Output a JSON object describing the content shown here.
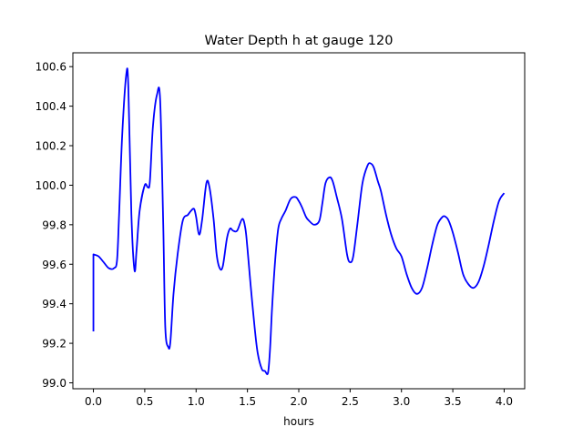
{
  "chart_data": {
    "type": "line",
    "title": "Water Depth h at gauge 120",
    "xlabel": "hours",
    "ylabel": "",
    "xlim": [
      -0.2,
      4.2
    ],
    "ylim": [
      98.97,
      100.67
    ],
    "xticks": [
      0.0,
      0.5,
      1.0,
      1.5,
      2.0,
      2.5,
      3.0,
      3.5,
      4.0
    ],
    "xtick_labels": [
      "0.0",
      "0.5",
      "1.0",
      "1.5",
      "2.0",
      "2.5",
      "3.0",
      "3.5",
      "4.0"
    ],
    "yticks": [
      99.0,
      99.2,
      99.4,
      99.6,
      99.8,
      100.0,
      100.2,
      100.4,
      100.6
    ],
    "ytick_labels": [
      "99.0",
      "99.2",
      "99.4",
      "99.6",
      "99.8",
      "100.0",
      "100.2",
      "100.4",
      "100.6"
    ],
    "grid": false,
    "series": [
      {
        "color": "#0000ff",
        "x": [
          0.0,
          0.0,
          0.05,
          0.1,
          0.15,
          0.2,
          0.23,
          0.25,
          0.28,
          0.32,
          0.34,
          0.37,
          0.4,
          0.42,
          0.45,
          0.5,
          0.53,
          0.55,
          0.58,
          0.62,
          0.65,
          0.68,
          0.7,
          0.73,
          0.75,
          0.78,
          0.82,
          0.87,
          0.92,
          0.95,
          0.98,
          1.0,
          1.03,
          1.06,
          1.1,
          1.13,
          1.17,
          1.2,
          1.23,
          1.26,
          1.3,
          1.33,
          1.36,
          1.4,
          1.45,
          1.48,
          1.5,
          1.53,
          1.57,
          1.6,
          1.64,
          1.67,
          1.7,
          1.72,
          1.74,
          1.77,
          1.8,
          1.83,
          1.87,
          1.92,
          1.97,
          2.0,
          2.03,
          2.07,
          2.1,
          2.15,
          2.2,
          2.23,
          2.26,
          2.3,
          2.33,
          2.37,
          2.42,
          2.47,
          2.5,
          2.53,
          2.57,
          2.62,
          2.67,
          2.7,
          2.73,
          2.77,
          2.8,
          2.85,
          2.9,
          2.95,
          3.0,
          3.05,
          3.1,
          3.15,
          3.2,
          3.25,
          3.3,
          3.35,
          3.4,
          3.43,
          3.46,
          3.5,
          3.55,
          3.6,
          3.65,
          3.7,
          3.75,
          3.8,
          3.85,
          3.9,
          3.95,
          4.0
        ],
        "y": [
          99.26,
          99.65,
          99.64,
          99.61,
          99.58,
          99.58,
          99.62,
          99.85,
          100.25,
          100.56,
          100.5,
          99.85,
          99.57,
          99.67,
          99.87,
          100.0,
          99.99,
          100.02,
          100.3,
          100.46,
          100.43,
          99.8,
          99.28,
          99.18,
          99.21,
          99.45,
          99.65,
          99.82,
          99.85,
          99.87,
          99.88,
          99.84,
          99.75,
          99.83,
          100.01,
          99.99,
          99.83,
          99.65,
          99.58,
          99.59,
          99.73,
          99.78,
          99.77,
          99.77,
          99.83,
          99.78,
          99.68,
          99.5,
          99.28,
          99.15,
          99.07,
          99.06,
          99.05,
          99.17,
          99.38,
          99.62,
          99.78,
          99.83,
          99.87,
          99.93,
          99.94,
          99.92,
          99.89,
          99.84,
          99.82,
          99.8,
          99.82,
          99.91,
          100.01,
          100.04,
          100.02,
          99.94,
          99.83,
          99.65,
          99.61,
          99.64,
          99.8,
          100.01,
          100.1,
          100.11,
          100.09,
          100.02,
          99.97,
          99.85,
          99.75,
          99.68,
          99.64,
          99.55,
          99.48,
          99.45,
          99.48,
          99.58,
          99.7,
          99.8,
          99.84,
          99.84,
          99.82,
          99.76,
          99.66,
          99.55,
          99.5,
          99.48,
          99.51,
          99.59,
          99.7,
          99.82,
          99.92,
          99.96
        ]
      }
    ]
  }
}
